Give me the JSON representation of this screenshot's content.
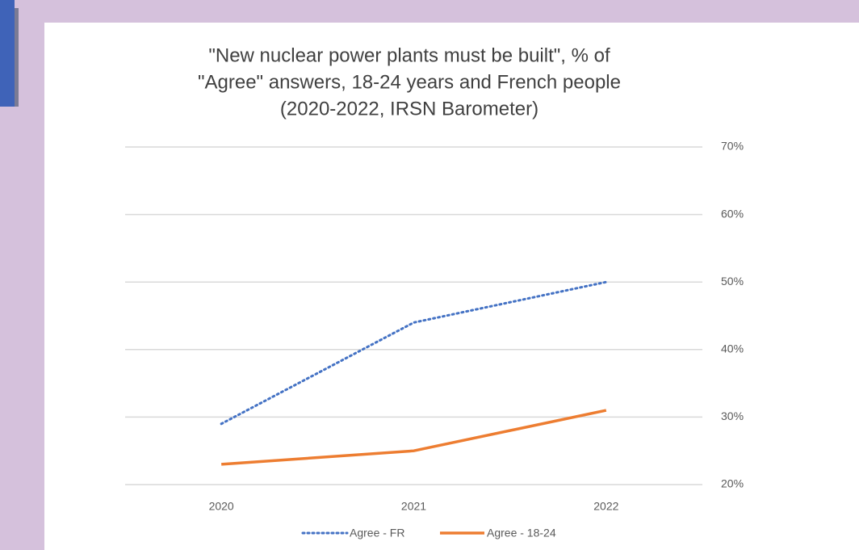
{
  "chart_data": {
    "type": "line",
    "title": [
      "\"New nuclear power plants must be built\", % of",
      "\"Agree\" answers, 18-24 years and French people",
      "(2020-2022, IRSN Barometer)"
    ],
    "categories": [
      "2020",
      "2021",
      "2022"
    ],
    "series": [
      {
        "name": "Agree - FR",
        "color": "#4472c4",
        "dash": "dotted",
        "values": [
          29,
          44,
          50
        ]
      },
      {
        "name": "Agree - 18-24",
        "color": "#ed7d31",
        "dash": "solid",
        "values": [
          23,
          25,
          31
        ]
      }
    ],
    "ylim": [
      20,
      70
    ],
    "yticks": [
      {
        "value": 20,
        "label": "20%"
      },
      {
        "value": 30,
        "label": "30%"
      },
      {
        "value": 40,
        "label": "40%"
      },
      {
        "value": 50,
        "label": "50%"
      },
      {
        "value": 60,
        "label": "60%"
      },
      {
        "value": 70,
        "label": "70%"
      }
    ],
    "grid": true,
    "legend": "bottom"
  }
}
